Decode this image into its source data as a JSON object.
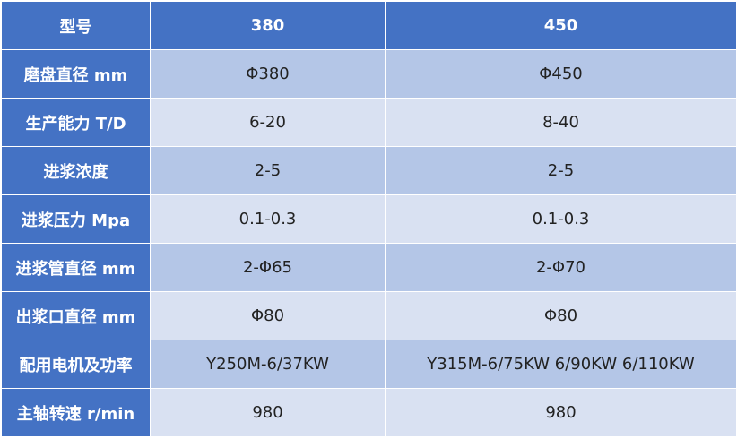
{
  "table": {
    "header": [
      "型号",
      "380",
      "450"
    ],
    "rows": [
      [
        "磨盘直径 mm",
        "Φ380",
        "Φ450"
      ],
      [
        "生产能力 T/D",
        "6-20",
        "8-40"
      ],
      [
        "进浆浓度",
        "2-5",
        "2-5"
      ],
      [
        "进浆压力 Mpa",
        "0.1-0.3",
        "0.1-0.3"
      ],
      [
        "进浆管直径 mm",
        "2-Φ65",
        "2-Φ70"
      ],
      [
        "出浆口直径 mm",
        "Φ80",
        "Φ80"
      ],
      [
        "配用电机及功率",
        "Y250M-6/37KW",
        "Y315M-6/75KW 6/90KW 6/110KW"
      ],
      [
        "主轴转速 r/min",
        "980",
        "980"
      ]
    ]
  }
}
